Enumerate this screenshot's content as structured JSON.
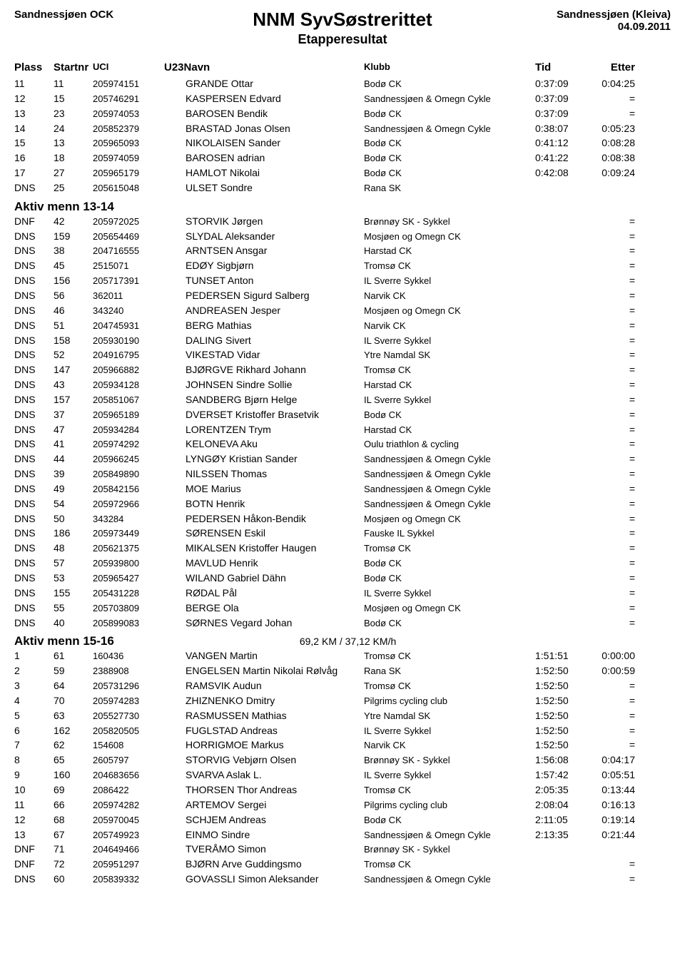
{
  "header": {
    "left": "Sandnessjøen OCK",
    "title": "NNM SyvSøstrerittet",
    "subtitle": "Etapperesultat",
    "right1": "Sandnessjøen (Kleiva)",
    "right2": "04.09.2011"
  },
  "columns": {
    "plass": "Plass",
    "startnr": "Startnr",
    "uci": "UCI",
    "u23": "U23",
    "navn": "Navn",
    "klubb": "Klubb",
    "tid": "Tid",
    "etter": "Etter"
  },
  "group1_rows": [
    {
      "plass": "11",
      "startnr": "11",
      "uci": "205974151",
      "navn": "GRANDE Ottar",
      "klubb": "Bodø CK",
      "tid": "0:37:09",
      "etter": "0:04:25"
    },
    {
      "plass": "12",
      "startnr": "15",
      "uci": "205746291",
      "navn": "KASPERSEN Edvard",
      "klubb": "Sandnessjøen &amp; Omegn Cykle",
      "tid": "0:37:09",
      "etter": "="
    },
    {
      "plass": "13",
      "startnr": "23",
      "uci": "205974053",
      "navn": "BAROSEN Bendik",
      "klubb": "Bodø CK",
      "tid": "0:37:09",
      "etter": "="
    },
    {
      "plass": "14",
      "startnr": "24",
      "uci": "205852379",
      "navn": "BRASTAD Jonas Olsen",
      "klubb": "Sandnessjøen &amp; Omegn Cykle",
      "tid": "0:38:07",
      "etter": "0:05:23"
    },
    {
      "plass": "15",
      "startnr": "13",
      "uci": "205965093",
      "navn": "NIKOLAISEN Sander",
      "klubb": "Bodø CK",
      "tid": "0:41:12",
      "etter": "0:08:28"
    },
    {
      "plass": "16",
      "startnr": "18",
      "uci": "205974059",
      "navn": "BAROSEN adrian",
      "klubb": "Bodø CK",
      "tid": "0:41:22",
      "etter": "0:08:38"
    },
    {
      "plass": "17",
      "startnr": "27",
      "uci": "205965179",
      "navn": "HAMLOT Nikolai",
      "klubb": "Bodø CK",
      "tid": "0:42:08",
      "etter": "0:09:24"
    },
    {
      "plass": "DNS",
      "startnr": "25",
      "uci": "205615048",
      "navn": "ULSET Sondre",
      "klubb": "Rana SK",
      "tid": "",
      "etter": ""
    }
  ],
  "section2": {
    "title": "Aktiv menn 13-14",
    "sub": ""
  },
  "group2_rows": [
    {
      "plass": "DNF",
      "startnr": "42",
      "uci": "205972025",
      "navn": "STORVIK Jørgen",
      "klubb": "Brønnøy SK - Sykkel",
      "tid": "",
      "etter": "="
    },
    {
      "plass": "DNS",
      "startnr": "159",
      "uci": "205654469",
      "navn": "SLYDAL Aleksander",
      "klubb": "Mosjøen og Omegn CK",
      "tid": "",
      "etter": "="
    },
    {
      "plass": "DNS",
      "startnr": "38",
      "uci": "204716555",
      "navn": "ARNTSEN Ansgar",
      "klubb": "Harstad CK",
      "tid": "",
      "etter": "="
    },
    {
      "plass": "DNS",
      "startnr": "45",
      "uci": "2515071",
      "navn": "EDØY Sigbjørn",
      "klubb": "Tromsø CK",
      "tid": "",
      "etter": "="
    },
    {
      "plass": "DNS",
      "startnr": "156",
      "uci": "205717391",
      "navn": "TUNSET Anton",
      "klubb": "IL Sverre Sykkel",
      "tid": "",
      "etter": "="
    },
    {
      "plass": "DNS",
      "startnr": "56",
      "uci": "362011",
      "navn": "PEDERSEN Sigurd Salberg",
      "klubb": "Narvik CK",
      "tid": "",
      "etter": "="
    },
    {
      "plass": "DNS",
      "startnr": "46",
      "uci": "343240",
      "navn": "ANDREASEN Jesper",
      "klubb": "Mosjøen og Omegn CK",
      "tid": "",
      "etter": "="
    },
    {
      "plass": "DNS",
      "startnr": "51",
      "uci": "204745931",
      "navn": "BERG Mathias",
      "klubb": "Narvik CK",
      "tid": "",
      "etter": "="
    },
    {
      "plass": "DNS",
      "startnr": "158",
      "uci": "205930190",
      "navn": "DALING Sivert",
      "klubb": "IL Sverre Sykkel",
      "tid": "",
      "etter": "="
    },
    {
      "plass": "DNS",
      "startnr": "52",
      "uci": "204916795",
      "navn": "VIKESTAD Vidar",
      "klubb": "Ytre Namdal SK",
      "tid": "",
      "etter": "="
    },
    {
      "plass": "DNS",
      "startnr": "147",
      "uci": "205966882",
      "navn": "BJØRGVE Rikhard Johann",
      "klubb": "Tromsø CK",
      "tid": "",
      "etter": "="
    },
    {
      "plass": "DNS",
      "startnr": "43",
      "uci": "205934128",
      "navn": "JOHNSEN Sindre Sollie",
      "klubb": "Harstad CK",
      "tid": "",
      "etter": "="
    },
    {
      "plass": "DNS",
      "startnr": "157",
      "uci": "205851067",
      "navn": "SANDBERG Bjørn Helge",
      "klubb": "IL Sverre Sykkel",
      "tid": "",
      "etter": "="
    },
    {
      "plass": "DNS",
      "startnr": "37",
      "uci": "205965189",
      "navn": "DVERSET Kristoffer Brasetvik",
      "klubb": "Bodø CK",
      "tid": "",
      "etter": "="
    },
    {
      "plass": "DNS",
      "startnr": "47",
      "uci": "205934284",
      "navn": "LORENTZEN Trym",
      "klubb": "Harstad CK",
      "tid": "",
      "etter": "="
    },
    {
      "plass": "DNS",
      "startnr": "41",
      "uci": "205974292",
      "navn": "KELONEVA Aku",
      "klubb": "Oulu triathlon &amp; cycling",
      "tid": "",
      "etter": "="
    },
    {
      "plass": "DNS",
      "startnr": "44",
      "uci": "205966245",
      "navn": "LYNGØY Kristian Sander",
      "klubb": "Sandnessjøen &amp; Omegn Cykle",
      "tid": "",
      "etter": "="
    },
    {
      "plass": "DNS",
      "startnr": "39",
      "uci": "205849890",
      "navn": "NILSSEN Thomas",
      "klubb": "Sandnessjøen &amp; Omegn Cykle",
      "tid": "",
      "etter": "="
    },
    {
      "plass": "DNS",
      "startnr": "49",
      "uci": "205842156",
      "navn": "MOE Marius",
      "klubb": "Sandnessjøen &amp; Omegn Cykle",
      "tid": "",
      "etter": "="
    },
    {
      "plass": "DNS",
      "startnr": "54",
      "uci": "205972966",
      "navn": "BOTN Henrik",
      "klubb": "Sandnessjøen &amp; Omegn Cykle",
      "tid": "",
      "etter": "="
    },
    {
      "plass": "DNS",
      "startnr": "50",
      "uci": "343284",
      "navn": "PEDERSEN Håkon-Bendik",
      "klubb": "Mosjøen og Omegn CK",
      "tid": "",
      "etter": "="
    },
    {
      "plass": "DNS",
      "startnr": "186",
      "uci": "205973449",
      "navn": "SØRENSEN Eskil",
      "klubb": "Fauske IL Sykkel",
      "tid": "",
      "etter": "="
    },
    {
      "plass": "DNS",
      "startnr": "48",
      "uci": "205621375",
      "navn": "MIKALSEN Kristoffer Haugen",
      "klubb": "Tromsø CK",
      "tid": "",
      "etter": "="
    },
    {
      "plass": "DNS",
      "startnr": "57",
      "uci": "205939800",
      "navn": "MAVLUD Henrik",
      "klubb": "Bodø CK",
      "tid": "",
      "etter": "="
    },
    {
      "plass": "DNS",
      "startnr": "53",
      "uci": "205965427",
      "navn": "WILAND Gabriel Dähn",
      "klubb": "Bodø CK",
      "tid": "",
      "etter": "="
    },
    {
      "plass": "DNS",
      "startnr": "155",
      "uci": "205431228",
      "navn": "RØDAL Pål",
      "klubb": "IL Sverre Sykkel",
      "tid": "",
      "etter": "="
    },
    {
      "plass": "DNS",
      "startnr": "55",
      "uci": "205703809",
      "navn": "BERGE Ola",
      "klubb": "Mosjøen og Omegn CK",
      "tid": "",
      "etter": "="
    },
    {
      "plass": "DNS",
      "startnr": "40",
      "uci": "205899083",
      "navn": "SØRNES Vegard Johan",
      "klubb": "Bodø CK",
      "tid": "",
      "etter": "="
    }
  ],
  "section3": {
    "title": "Aktiv menn 15-16",
    "sub": "69,2 KM / 37,12 KM/h"
  },
  "group3_rows": [
    {
      "plass": "1",
      "startnr": "61",
      "uci": "160436",
      "navn": "VANGEN Martin",
      "klubb": "Tromsø CK",
      "tid": "1:51:51",
      "etter": "0:00:00"
    },
    {
      "plass": "2",
      "startnr": "59",
      "uci": "2388908",
      "navn": "ENGELSEN Martin Nikolai Rølvåg",
      "klubb": "Rana SK",
      "tid": "1:52:50",
      "etter": "0:00:59"
    },
    {
      "plass": "3",
      "startnr": "64",
      "uci": "205731296",
      "navn": "RAMSVIK Audun",
      "klubb": "Tromsø CK",
      "tid": "1:52:50",
      "etter": "="
    },
    {
      "plass": "4",
      "startnr": "70",
      "uci": "205974283",
      "navn": "ZHIZNENKO Dmitry",
      "klubb": "Pilgrims cycling club",
      "tid": "1:52:50",
      "etter": "="
    },
    {
      "plass": "5",
      "startnr": "63",
      "uci": "205527730",
      "navn": "RASMUSSEN Mathias",
      "klubb": "Ytre Namdal SK",
      "tid": "1:52:50",
      "etter": "="
    },
    {
      "plass": "6",
      "startnr": "162",
      "uci": "205820505",
      "navn": "FUGLSTAD Andreas",
      "klubb": "IL Sverre Sykkel",
      "tid": "1:52:50",
      "etter": "="
    },
    {
      "plass": "7",
      "startnr": "62",
      "uci": "154608",
      "navn": "HORRIGMOE Markus",
      "klubb": "Narvik CK",
      "tid": "1:52:50",
      "etter": "="
    },
    {
      "plass": "8",
      "startnr": "65",
      "uci": "2605797",
      "navn": "STORVIG Vebjørn Olsen",
      "klubb": "Brønnøy SK - Sykkel",
      "tid": "1:56:08",
      "etter": "0:04:17"
    },
    {
      "plass": "9",
      "startnr": "160",
      "uci": "204683656",
      "navn": "SVARVA Aslak L.",
      "klubb": "IL Sverre Sykkel",
      "tid": "1:57:42",
      "etter": "0:05:51"
    },
    {
      "plass": "10",
      "startnr": "69",
      "uci": "2086422",
      "navn": "THORSEN Thor Andreas",
      "klubb": "Tromsø CK",
      "tid": "2:05:35",
      "etter": "0:13:44"
    },
    {
      "plass": "11",
      "startnr": "66",
      "uci": "205974282",
      "navn": "ARTEMOV Sergei",
      "klubb": "Pilgrims cycling club",
      "tid": "2:08:04",
      "etter": "0:16:13"
    },
    {
      "plass": "12",
      "startnr": "68",
      "uci": "205970045",
      "navn": "SCHJEM Andreas",
      "klubb": "Bodø CK",
      "tid": "2:11:05",
      "etter": "0:19:14"
    },
    {
      "plass": "13",
      "startnr": "67",
      "uci": "205749923",
      "navn": "EINMO Sindre",
      "klubb": "Sandnessjøen &amp; Omegn Cykle",
      "tid": "2:13:35",
      "etter": "0:21:44"
    },
    {
      "plass": "DNF",
      "startnr": "71",
      "uci": "204649466",
      "navn": "TVERÅMO Simon",
      "klubb": "Brønnøy SK - Sykkel",
      "tid": "",
      "etter": ""
    },
    {
      "plass": "DNF",
      "startnr": "72",
      "uci": "205951297",
      "navn": "BJØRN Arve Guddingsmo",
      "klubb": "Tromsø CK",
      "tid": "",
      "etter": "="
    },
    {
      "plass": "DNS",
      "startnr": "60",
      "uci": "205839332",
      "navn": "GOVASSLI Simon Aleksander",
      "klubb": "Sandnessjøen &amp; Omegn Cykle",
      "tid": "",
      "etter": "="
    }
  ]
}
